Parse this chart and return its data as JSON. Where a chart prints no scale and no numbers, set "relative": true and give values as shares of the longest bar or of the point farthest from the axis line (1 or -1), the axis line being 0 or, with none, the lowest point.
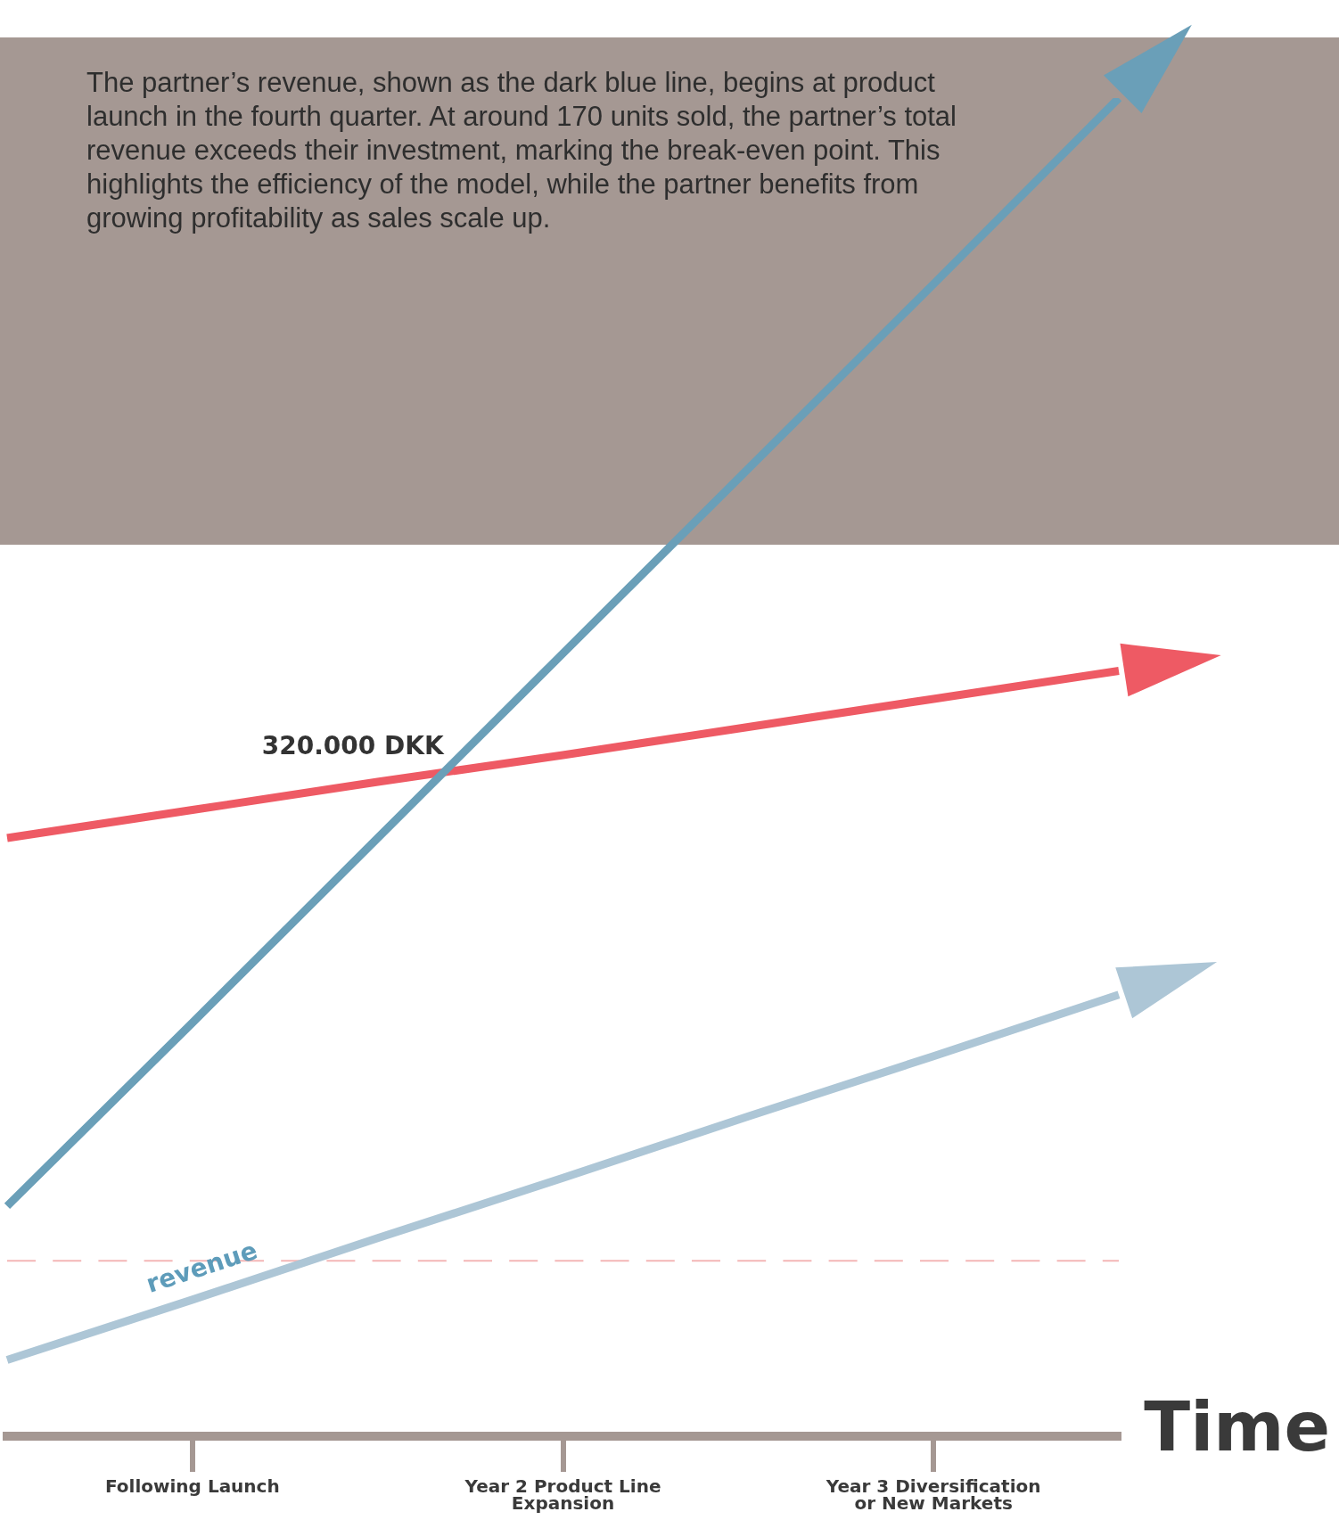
{
  "chart_data": {
    "type": "line",
    "relative": true,
    "xlabel": "Time",
    "annotations": [
      "The partner’s revenue, shown as the dark blue line, begins at product launch in the fourth quarter. At around 170 units sold, the partner’s total revenue exceeds their investment, marking the break-even point. This highlights the efficiency of the model, while the partner benefits from growing profitability as sales scale up.",
      "320.000 DKK"
    ],
    "categories": [
      null,
      "Following Launch",
      null,
      "Year 2 Product Line Expansion",
      null,
      "Year 3 Diversification or New Markets",
      null
    ],
    "series": [
      {
        "color": "#6a9fb8",
        "values": [
          0.172,
          0.309,
          0.447,
          0.585,
          0.723,
          0.861,
          1
        ]
      },
      {
        "color": "#ee5a64",
        "values": [
          0.447,
          0.468,
          0.489,
          0.509,
          0.53,
          0.551,
          0.572
        ]
      },
      {
        "name": "revenue",
        "color": "#adc6d6",
        "values": [
          0.057,
          0.102,
          0.148,
          0.193,
          0.239,
          0.284,
          0.33
        ]
      }
    ],
    "ref_lines": [
      {
        "axis": "y",
        "value": 0.131,
        "color": "#f4b6b6",
        "line_style": "dashed"
      }
    ],
    "legend": false,
    "grid": false,
    "marker": "none"
  }
}
